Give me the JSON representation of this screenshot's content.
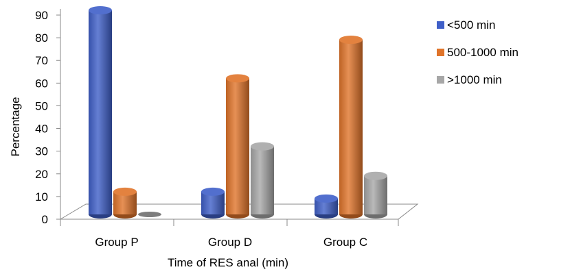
{
  "chart_data": {
    "type": "bar",
    "categories": [
      "Group P",
      "Group D",
      "Group C"
    ],
    "series": [
      {
        "name": "<500 min",
        "values": [
          90,
          10,
          7
        ],
        "color": "#3f5fc8"
      },
      {
        "name": "500-1000  min",
        "values": [
          10,
          60,
          77
        ],
        "color": "#e0742a"
      },
      {
        "name": ">1000 min",
        "values": [
          0,
          30,
          17
        ],
        "color": "#a7a7a7"
      }
    ],
    "title": "",
    "xlabel": "Time of RES anal (min)",
    "ylabel": "Percentage",
    "ylim": [
      0,
      90
    ],
    "yticks": [
      "0",
      "10",
      "20",
      "30",
      "40",
      "50",
      "60",
      "70",
      "80",
      "90"
    ],
    "style": "3d-cylinder",
    "legend": "right",
    "grid": false
  }
}
